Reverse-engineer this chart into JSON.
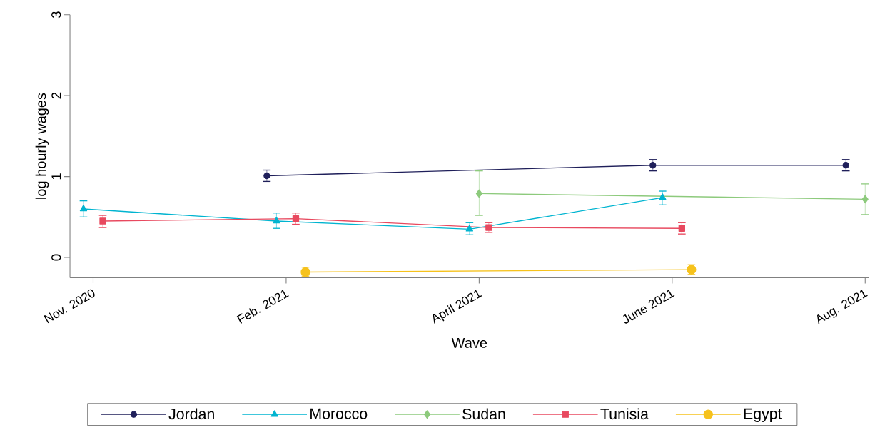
{
  "chart_data": {
    "type": "line",
    "xlabel": "Wave",
    "ylabel": "log hourly wages",
    "categories": [
      "Nov. 2020",
      "Feb. 2021",
      "April 2021",
      "June 2021",
      "Aug. 2021"
    ],
    "ylim": [
      -0.25,
      3
    ],
    "yticks": [
      0,
      1,
      2,
      3
    ],
    "grid": false,
    "legend": "bottom",
    "series": [
      {
        "name": "Jordan",
        "color": "#1f1f5a",
        "marker": "circle",
        "values": [
          null,
          1.01,
          null,
          1.14,
          1.14
        ],
        "errors": [
          null,
          [
            0.94,
            1.08
          ],
          null,
          [
            1.07,
            1.21
          ],
          [
            1.07,
            1.21
          ]
        ]
      },
      {
        "name": "Morocco",
        "color": "#00b4d0",
        "marker": "triangle",
        "values": [
          0.6,
          0.45,
          0.35,
          0.74,
          null
        ],
        "errors": [
          [
            0.5,
            0.7
          ],
          [
            0.36,
            0.55
          ],
          [
            0.28,
            0.43
          ],
          [
            0.65,
            0.82
          ],
          null
        ]
      },
      {
        "name": "Sudan",
        "color": "#8dca7c",
        "marker": "diamond",
        "values": [
          null,
          null,
          0.79,
          null,
          0.72
        ],
        "errors": [
          null,
          null,
          [
            0.52,
            1.07
          ],
          null,
          [
            0.53,
            0.91
          ]
        ]
      },
      {
        "name": "Tunisia",
        "color": "#e8495f",
        "marker": "square",
        "values": [
          0.45,
          0.48,
          0.37,
          0.36,
          null
        ],
        "errors": [
          [
            0.37,
            0.52
          ],
          [
            0.41,
            0.55
          ],
          [
            0.31,
            0.43
          ],
          [
            0.29,
            0.43
          ],
          null
        ]
      },
      {
        "name": "Egypt",
        "color": "#f6c21c",
        "marker": "circle",
        "values": [
          null,
          -0.18,
          null,
          -0.15,
          null
        ],
        "errors": [
          null,
          [
            -0.23,
            -0.12
          ],
          null,
          [
            -0.21,
            -0.09
          ],
          null
        ]
      }
    ]
  }
}
